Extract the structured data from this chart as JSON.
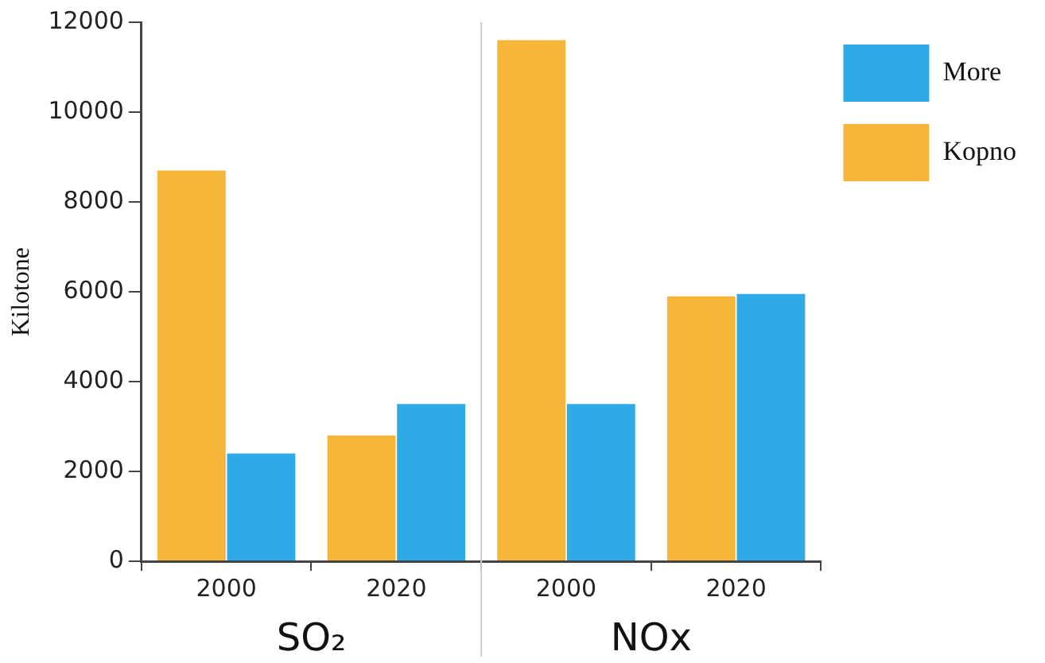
{
  "chart_data": {
    "type": "bar",
    "ylabel": "Kilotone",
    "categories": [
      "2000",
      "2020",
      "2000",
      "2020"
    ],
    "series": [
      {
        "name": "Kopno",
        "color": "#f6b63a",
        "values": [
          8700,
          2800,
          11600,
          5900
        ]
      },
      {
        "name": "More",
        "color": "#2eaae6",
        "values": [
          2400,
          3500,
          3500,
          5950
        ]
      }
    ],
    "ylim": [
      0,
      12000
    ],
    "yticks": [
      0,
      2000,
      4000,
      6000,
      8000,
      10000,
      12000
    ],
    "grid": false,
    "legend": "top right",
    "annotations": [
      "SO₂",
      "NOx"
    ]
  }
}
